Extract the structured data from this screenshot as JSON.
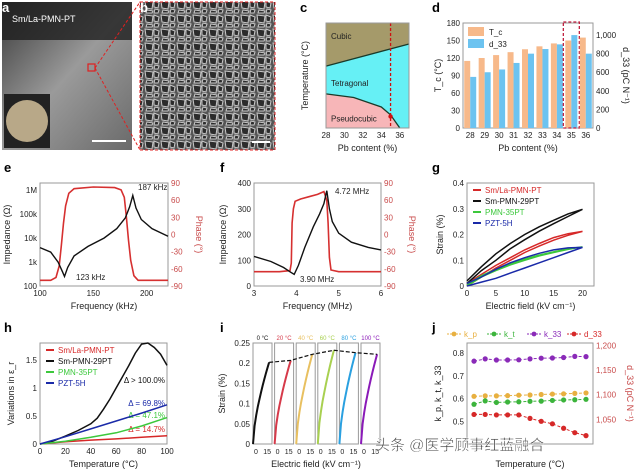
{
  "panel_letters": [
    "a",
    "b",
    "c",
    "d",
    "e",
    "f",
    "g",
    "h",
    "i",
    "j"
  ],
  "panel_a": {
    "label": "Sm/La-PMN-PT",
    "description_kind": "photo"
  },
  "watermark": "头条 @医学顾事红蓝融合",
  "colors": {
    "red": "#d62828",
    "black": "#111111",
    "green": "#3cc83c",
    "blue": "#1a2aa8",
    "tc_bar": "#f7b98a",
    "d33_bar": "#6cc3f0",
    "cubic": "#a59a6a",
    "tetragonal": "#66f0f5",
    "pseudocubic": "#f7b6b8",
    "phase_axis": "#c84a4a"
  },
  "chart_data": [
    {
      "id": "c",
      "type": "area",
      "xlabel": "Pb content (%)",
      "ylabel": "Temperature (°C)",
      "xlim": [
        28,
        37
      ],
      "ylim": [
        0,
        200
      ],
      "xticks": [
        28,
        30,
        32,
        34,
        36
      ],
      "regions": [
        {
          "name": "Cubic"
        },
        {
          "name": "Tetragonal"
        },
        {
          "name": "Pseudocubic"
        }
      ],
      "boundaries": [
        {
          "x": [
            28,
            37
          ],
          "y": [
            118,
            160
          ]
        },
        {
          "x": [
            28,
            31,
            34,
            35,
            36
          ],
          "y": [
            65,
            58,
            40,
            25,
            0
          ]
        }
      ],
      "marker": {
        "x": 35,
        "style": "dashed-red"
      }
    },
    {
      "id": "d",
      "type": "bar",
      "xlabel": "Pb content (%)",
      "ylabel": "T_c (°C)",
      "y2label": "d_33 (pC N⁻¹)",
      "categories": [
        "28",
        "29",
        "30",
        "31",
        "32",
        "33",
        "34",
        "35",
        "36"
      ],
      "ylim": [
        0,
        180
      ],
      "yticks": [
        0,
        30,
        60,
        90,
        120,
        150,
        180
      ],
      "y2lim": [
        0,
        1130
      ],
      "y2ticks": [
        0,
        200,
        400,
        600,
        800,
        "1,000"
      ],
      "series": [
        {
          "name": "T_c",
          "values": [
            115,
            120,
            125,
            130,
            135,
            140,
            145,
            150,
            155
          ]
        },
        {
          "name": "d_33",
          "values": [
            550,
            600,
            630,
            700,
            800,
            850,
            900,
            1000,
            800
          ]
        }
      ],
      "highlight": "35"
    },
    {
      "id": "e",
      "type": "line",
      "xlabel": "Frequency (kHz)",
      "ylabel": "Impedance (Ω)",
      "y2label": "Phase (°)",
      "xlim": [
        100,
        220
      ],
      "xticks": [
        100,
        150,
        200
      ],
      "ylog": true,
      "ylim": [
        100,
        2000000
      ],
      "yticks": [
        {
          "v": 100,
          "t": "100"
        },
        {
          "v": 1000,
          "t": "1k"
        },
        {
          "v": 10000,
          "t": "10k"
        },
        {
          "v": 100000,
          "t": "100k"
        },
        {
          "v": 1000000,
          "t": "1M"
        }
      ],
      "y2lim": [
        -90,
        90
      ],
      "y2ticks": [
        -90,
        -60,
        -30,
        0,
        30,
        60,
        90
      ],
      "series": [
        {
          "axis": "y",
          "x": [
            100,
            110,
            117,
            121,
            123,
            126,
            132,
            145,
            160,
            172,
            180,
            184,
            187,
            190,
            195,
            205,
            220
          ],
          "y": [
            4000,
            2600,
            1000,
            400,
            250,
            600,
            1800,
            4500,
            10000,
            25000,
            70000,
            200000,
            600000,
            180000,
            60000,
            25000,
            12000
          ]
        },
        {
          "axis": "y2",
          "x": [
            100,
            110,
            115,
            118,
            120,
            122,
            124,
            127,
            132,
            150,
            170,
            176,
            179,
            181,
            183,
            185,
            188,
            192,
            200,
            220
          ],
          "y2": [
            -80,
            -80,
            -75,
            -55,
            -20,
            20,
            50,
            72,
            80,
            83,
            82,
            78,
            65,
            30,
            -10,
            -45,
            -72,
            -80,
            -80,
            -80
          ]
        }
      ],
      "annotations": [
        "187 kHz",
        "123 kHz"
      ]
    },
    {
      "id": "f",
      "type": "line",
      "xlabel": "Frequency (MHz)",
      "ylabel": "Impedance (Ω)",
      "y2label": "Phase (°)",
      "xlim": [
        3,
        6
      ],
      "xticks": [
        3,
        4,
        5,
        6
      ],
      "ylim": [
        0,
        400
      ],
      "yticks": [
        0,
        100,
        200,
        300,
        400
      ],
      "y2lim": [
        -90,
        90
      ],
      "y2ticks": [
        -90,
        -60,
        -30,
        0,
        30,
        60,
        90
      ],
      "series": [
        {
          "axis": "y",
          "x": [
            3,
            3.4,
            3.7,
            3.85,
            3.95,
            4.05,
            4.2,
            4.4,
            4.55,
            4.65,
            4.72,
            4.78,
            4.85,
            5,
            5.3,
            5.7,
            6
          ],
          "y": [
            115,
            95,
            72,
            55,
            45,
            80,
            150,
            230,
            280,
            320,
            370,
            300,
            250,
            205,
            170,
            150,
            140
          ]
        },
        {
          "axis": "y2",
          "x": [
            3,
            3.6,
            3.85,
            3.88,
            3.9,
            3.93,
            3.97,
            4.1,
            4.3,
            4.5,
            4.65,
            4.72,
            4.75,
            4.78,
            4.82,
            5,
            6
          ],
          "y2": [
            -65,
            -65,
            -63,
            -50,
            20,
            45,
            58,
            62,
            66,
            70,
            75,
            60,
            20,
            -40,
            -62,
            -65,
            -65
          ]
        }
      ],
      "annotations": [
        "4.72 MHz",
        "3.90 MHz"
      ]
    },
    {
      "id": "g",
      "type": "line",
      "xlabel": "Electric field (kV cm⁻¹)",
      "ylabel": "Strain (%)",
      "xlim": [
        0,
        22
      ],
      "xticks": [
        0,
        5,
        10,
        15,
        20
      ],
      "ylim": [
        0,
        0.4
      ],
      "yticks": [
        0,
        0.1,
        0.2,
        0.3,
        0.4
      ],
      "legend": "top-left",
      "series": [
        {
          "name": "Sm/La-PMN-PT",
          "x": [
            0,
            2.5,
            5,
            7.5,
            10,
            12.5,
            15,
            17.5,
            20,
            17.5,
            15,
            12.5,
            10,
            7.5,
            5,
            2.5,
            0
          ],
          "y": [
            0,
            0.035,
            0.07,
            0.1,
            0.13,
            0.155,
            0.178,
            0.197,
            0.212,
            0.203,
            0.188,
            0.165,
            0.14,
            0.11,
            0.08,
            0.045,
            0.01
          ]
        },
        {
          "name": "Sm-PMN-29PT",
          "x": [
            0,
            2.5,
            5,
            7.5,
            10,
            12.5,
            15,
            17.5,
            20,
            17.5,
            15,
            12.5,
            10,
            7.5,
            5,
            2.5,
            0
          ],
          "y": [
            0.01,
            0.06,
            0.1,
            0.145,
            0.18,
            0.213,
            0.242,
            0.27,
            0.298,
            0.28,
            0.255,
            0.23,
            0.2,
            0.165,
            0.125,
            0.075,
            0.02
          ]
        },
        {
          "name": "PMN-35PT",
          "x": [
            0,
            2.5,
            5,
            7.5,
            10,
            12.5,
            15,
            17.5,
            20,
            17.5,
            15,
            12.5,
            10,
            7.5,
            5,
            2.5,
            0
          ],
          "y": [
            0,
            0.035,
            0.06,
            0.082,
            0.1,
            0.117,
            0.13,
            0.142,
            0.152,
            0.145,
            0.133,
            0.12,
            0.105,
            0.087,
            0.065,
            0.04,
            0.005
          ]
        },
        {
          "name": "PZT-5H",
          "x": [
            0,
            2.5,
            5,
            7.5,
            10,
            12.5,
            15,
            17.5,
            20,
            17.5,
            15,
            12.5,
            10,
            7.5,
            5,
            2.5,
            0
          ],
          "y": [
            0,
            0.015,
            0.03,
            0.05,
            0.07,
            0.09,
            0.11,
            0.13,
            0.15,
            0.148,
            0.14,
            0.127,
            0.11,
            0.09,
            0.065,
            0.035,
            0.01
          ]
        }
      ]
    },
    {
      "id": "h",
      "type": "line",
      "xlabel": "Temperature (°C)",
      "ylabel": "Variations in ε_r",
      "xlim": [
        0,
        100
      ],
      "xticks": [
        0,
        20,
        40,
        60,
        80,
        100
      ],
      "ylim": [
        0,
        1.8
      ],
      "yticks": [
        0,
        0.5,
        1.0,
        1.5
      ],
      "legend": "top-left",
      "series": [
        {
          "name": "Sm/La-PMN-PT",
          "x": [
            0,
            20,
            40,
            60,
            80,
            100
          ],
          "y": [
            0,
            0.04,
            0.07,
            0.09,
            0.12,
            0.147
          ],
          "label": "Δ = 14.7%"
        },
        {
          "name": "Sm-PMN-29PT",
          "x": [
            0,
            10,
            20,
            30,
            40,
            45,
            50,
            55,
            60,
            65,
            70,
            75,
            80,
            85,
            90,
            95,
            100
          ],
          "y": [
            0,
            0.05,
            0.14,
            0.24,
            0.36,
            0.46,
            0.62,
            0.8,
            1.0,
            1.2,
            1.4,
            1.62,
            1.78,
            1.8,
            1.72,
            1.6,
            1.4
          ],
          "label": "Δ > 100.0%"
        },
        {
          "name": "PMN-35PT",
          "x": [
            0,
            20,
            40,
            60,
            80,
            100
          ],
          "y": [
            0,
            0.05,
            0.12,
            0.2,
            0.32,
            0.471
          ],
          "label": "Δ = 47.1%"
        },
        {
          "name": "PZT-5H",
          "x": [
            0,
            20,
            40,
            60,
            80,
            100
          ],
          "y": [
            0,
            0.13,
            0.27,
            0.41,
            0.55,
            0.698
          ],
          "label": "Δ = 69.8%"
        }
      ]
    },
    {
      "id": "i",
      "type": "line",
      "xlabel": "Electric field (kV cm⁻¹)",
      "ylabel": "Strain (%)",
      "xlim": [
        0,
        20
      ],
      "xticks": [
        "0",
        "15"
      ],
      "ylim": [
        0,
        0.25
      ],
      "yticks": [
        0,
        0.05,
        0.1,
        0.15,
        0.2,
        0.25
      ],
      "series": [
        {
          "name": "0 °C",
          "color": "#111111",
          "max": 0.202
        },
        {
          "name": "20 °C",
          "color": "#d63a4a",
          "max": 0.207
        },
        {
          "name": "40 °C",
          "color": "#e8c060",
          "max": 0.222
        },
        {
          "name": "60 °C",
          "color": "#a8d050",
          "max": 0.232
        },
        {
          "name": "80 °C",
          "color": "#2aa0e0",
          "max": 0.226
        },
        {
          "name": "100 °C",
          "color": "#8a1ab8",
          "max": 0.222
        }
      ],
      "field_max": 17
    },
    {
      "id": "j",
      "type": "line",
      "xlabel": "Temperature (°C)",
      "ylabel": "k_p, k_t, k_33",
      "y2label": "d_33 (pC N⁻¹)",
      "ylim": [
        0.4,
        0.845
      ],
      "yticks": [
        0.5,
        0.6,
        0.7,
        0.8
      ],
      "y2lim": [
        1000,
        1205
      ],
      "y2ticks": [
        "1,050",
        "1,100",
        "1,150",
        "1,200"
      ],
      "legend": "top",
      "x": [
        0,
        10,
        20,
        30,
        40,
        50,
        60,
        70,
        80,
        90,
        100
      ],
      "series": [
        {
          "name": "k_p",
          "color": "#e8b040",
          "axis": "y",
          "y": [
            0.61,
            0.612,
            0.612,
            0.613,
            0.615,
            0.616,
            0.618,
            0.62,
            0.621,
            0.623,
            0.625
          ]
        },
        {
          "name": "k_t",
          "color": "#3cb43c",
          "axis": "y",
          "y": [
            0.575,
            0.59,
            0.583,
            0.585,
            0.586,
            0.588,
            0.589,
            0.592,
            0.594,
            0.595,
            0.597
          ]
        },
        {
          "name": "k_33",
          "color": "#8a2ab8",
          "axis": "y",
          "y": [
            0.765,
            0.775,
            0.77,
            0.77,
            0.771,
            0.775,
            0.778,
            0.779,
            0.781,
            0.786,
            0.785
          ]
        },
        {
          "name": "d_33",
          "color": "#d62828",
          "axis": "y2",
          "y": [
            1060,
            1060,
            1059,
            1059,
            1059,
            1052,
            1046,
            1041,
            1032,
            1023,
            1017
          ]
        }
      ]
    }
  ]
}
